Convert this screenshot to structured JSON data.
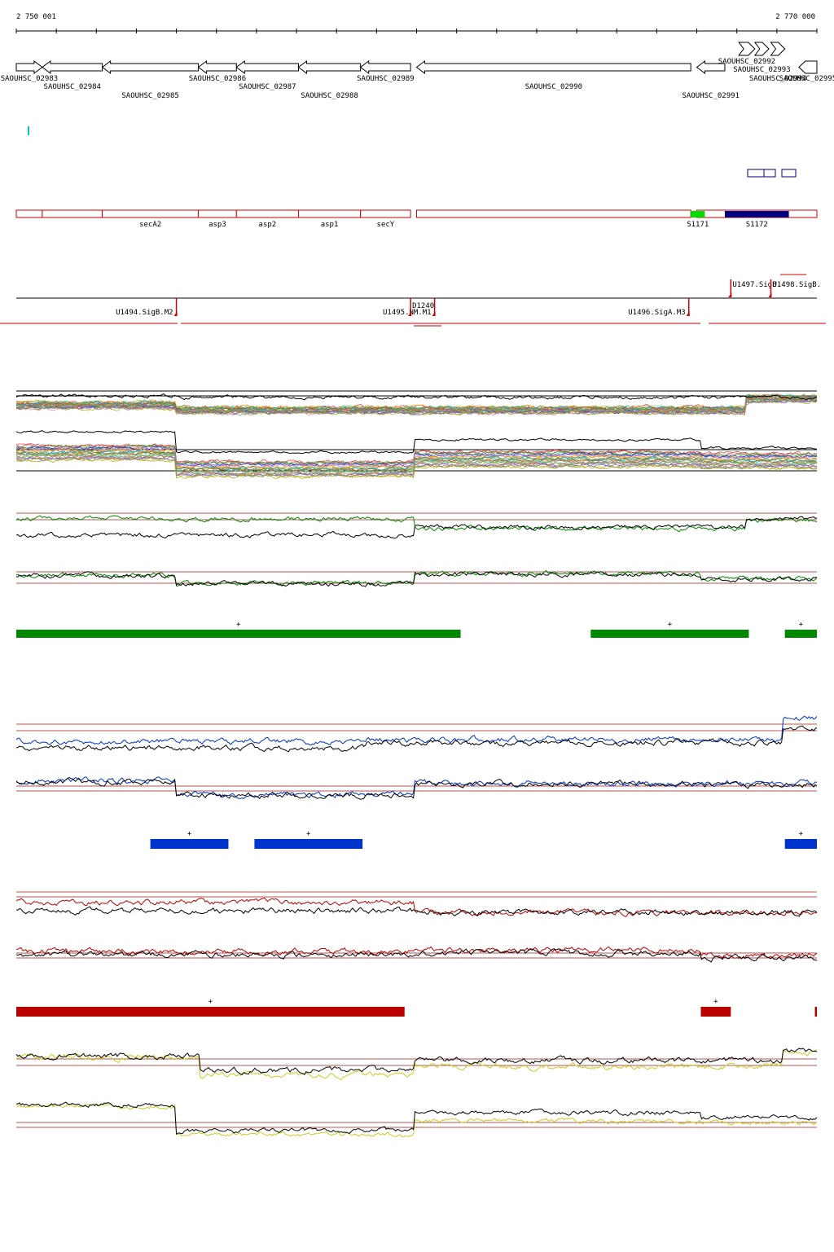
{
  "ruler": {
    "start_label": "2 750 001",
    "end_label": "2 770 000",
    "start": 2750001,
    "end": 2770000
  },
  "genes": [
    {
      "name": "SAOUHSC_02983",
      "start": 2750001,
      "end": 2750650,
      "strand": "+",
      "row": 0
    },
    {
      "name": "SAOUHSC_02984",
      "start": 2750650,
      "end": 2752150,
      "strand": "-",
      "row": 1
    },
    {
      "name": "SAOUHSC_02985",
      "start": 2752150,
      "end": 2754550,
      "strand": "-",
      "row": 2
    },
    {
      "name": "SAOUHSC_02986",
      "start": 2754550,
      "end": 2755500,
      "strand": "-",
      "row": 0
    },
    {
      "name": "SAOUHSC_02987",
      "start": 2755500,
      "end": 2757050,
      "strand": "-",
      "row": 1
    },
    {
      "name": "SAOUHSC_02988",
      "start": 2757050,
      "end": 2758600,
      "strand": "-",
      "row": 2
    },
    {
      "name": "SAOUHSC_02989",
      "start": 2758600,
      "end": 2759850,
      "strand": "-",
      "row": 0
    },
    {
      "name": "SAOUHSC_02990",
      "start": 2760000,
      "end": 2766850,
      "strand": "-",
      "row": 1
    },
    {
      "name": "SAOUHSC_02991",
      "start": 2767000,
      "end": 2767700,
      "strand": "-",
      "row": 2
    },
    {
      "name": "SAOUHSC_02992",
      "start": 2768050,
      "end": 2768450,
      "strand": "+",
      "row": 0
    },
    {
      "name": "SAOUHSC_02993",
      "start": 2768450,
      "end": 2768800,
      "strand": "+",
      "row": 1
    },
    {
      "name": "SAOUHSC_02994",
      "start": 2768850,
      "end": 2769200,
      "strand": "+",
      "row": 2
    },
    {
      "name": "SAOUHSC_02995",
      "start": 2769550,
      "end": 2770000,
      "strand": "-",
      "row": 2
    }
  ],
  "operon_genes": [
    {
      "name": "",
      "start": 2750001,
      "end": 2750650
    },
    {
      "name": "",
      "start": 2750650,
      "end": 2752150
    },
    {
      "name": "secA2",
      "start": 2752150,
      "end": 2754550
    },
    {
      "name": "asp3",
      "start": 2754550,
      "end": 2755500
    },
    {
      "name": "asp2",
      "start": 2755500,
      "end": 2757050
    },
    {
      "name": "asp1",
      "start": 2757050,
      "end": 2758600
    },
    {
      "name": "secY",
      "start": 2758600,
      "end": 2759850
    },
    {
      "name": "",
      "start": 2760000,
      "end": 2766850
    },
    {
      "name": "",
      "start": 2767000,
      "end": 2770000
    }
  ],
  "small_rnas": [
    {
      "name": "S1171",
      "start": 2766850,
      "end": 2767200,
      "color": "#00dd00"
    },
    {
      "name": "S1172",
      "start": 2767700,
      "end": 2769300,
      "color": "#000080"
    }
  ],
  "transcription_units": [
    {
      "name": "U1494.SigB.M2",
      "pos": 2754000
    },
    {
      "name": "U1495.NM.M1",
      "pos": 2760450
    },
    {
      "name": "U1496.SigA.M3",
      "pos": 2766800
    },
    {
      "name": "U1497.SigB.",
      "pos": 2767850
    },
    {
      "name": "U1498.SigB.",
      "pos": 2768850
    },
    {
      "name": "D1240",
      "pos": 2759850
    }
  ],
  "segments": {
    "green": [
      {
        "start": 2750001,
        "end": 2761100,
        "strand": "+"
      },
      {
        "start": 2764350,
        "end": 2768300,
        "strand": "+"
      },
      {
        "start": 2769200,
        "end": 2770000,
        "strand": "+"
      }
    ],
    "blue": [
      {
        "start": 2753350,
        "end": 2755300,
        "strand": "+"
      },
      {
        "start": 2755950,
        "end": 2758650,
        "strand": "+"
      },
      {
        "start": 2769200,
        "end": 2770000,
        "strand": "+"
      }
    ],
    "red": [
      {
        "start": 2750001,
        "end": 2759700,
        "strand": "+"
      },
      {
        "start": 2767100,
        "end": 2767850,
        "strand": "+"
      },
      {
        "start": 2769950,
        "end": 2770000,
        "strand": ""
      }
    ]
  },
  "colors": {
    "green": "#008800",
    "blue": "#0033cc",
    "red": "#bb0000",
    "yellow": "#cccc22",
    "gene_red": "#cc0000"
  }
}
